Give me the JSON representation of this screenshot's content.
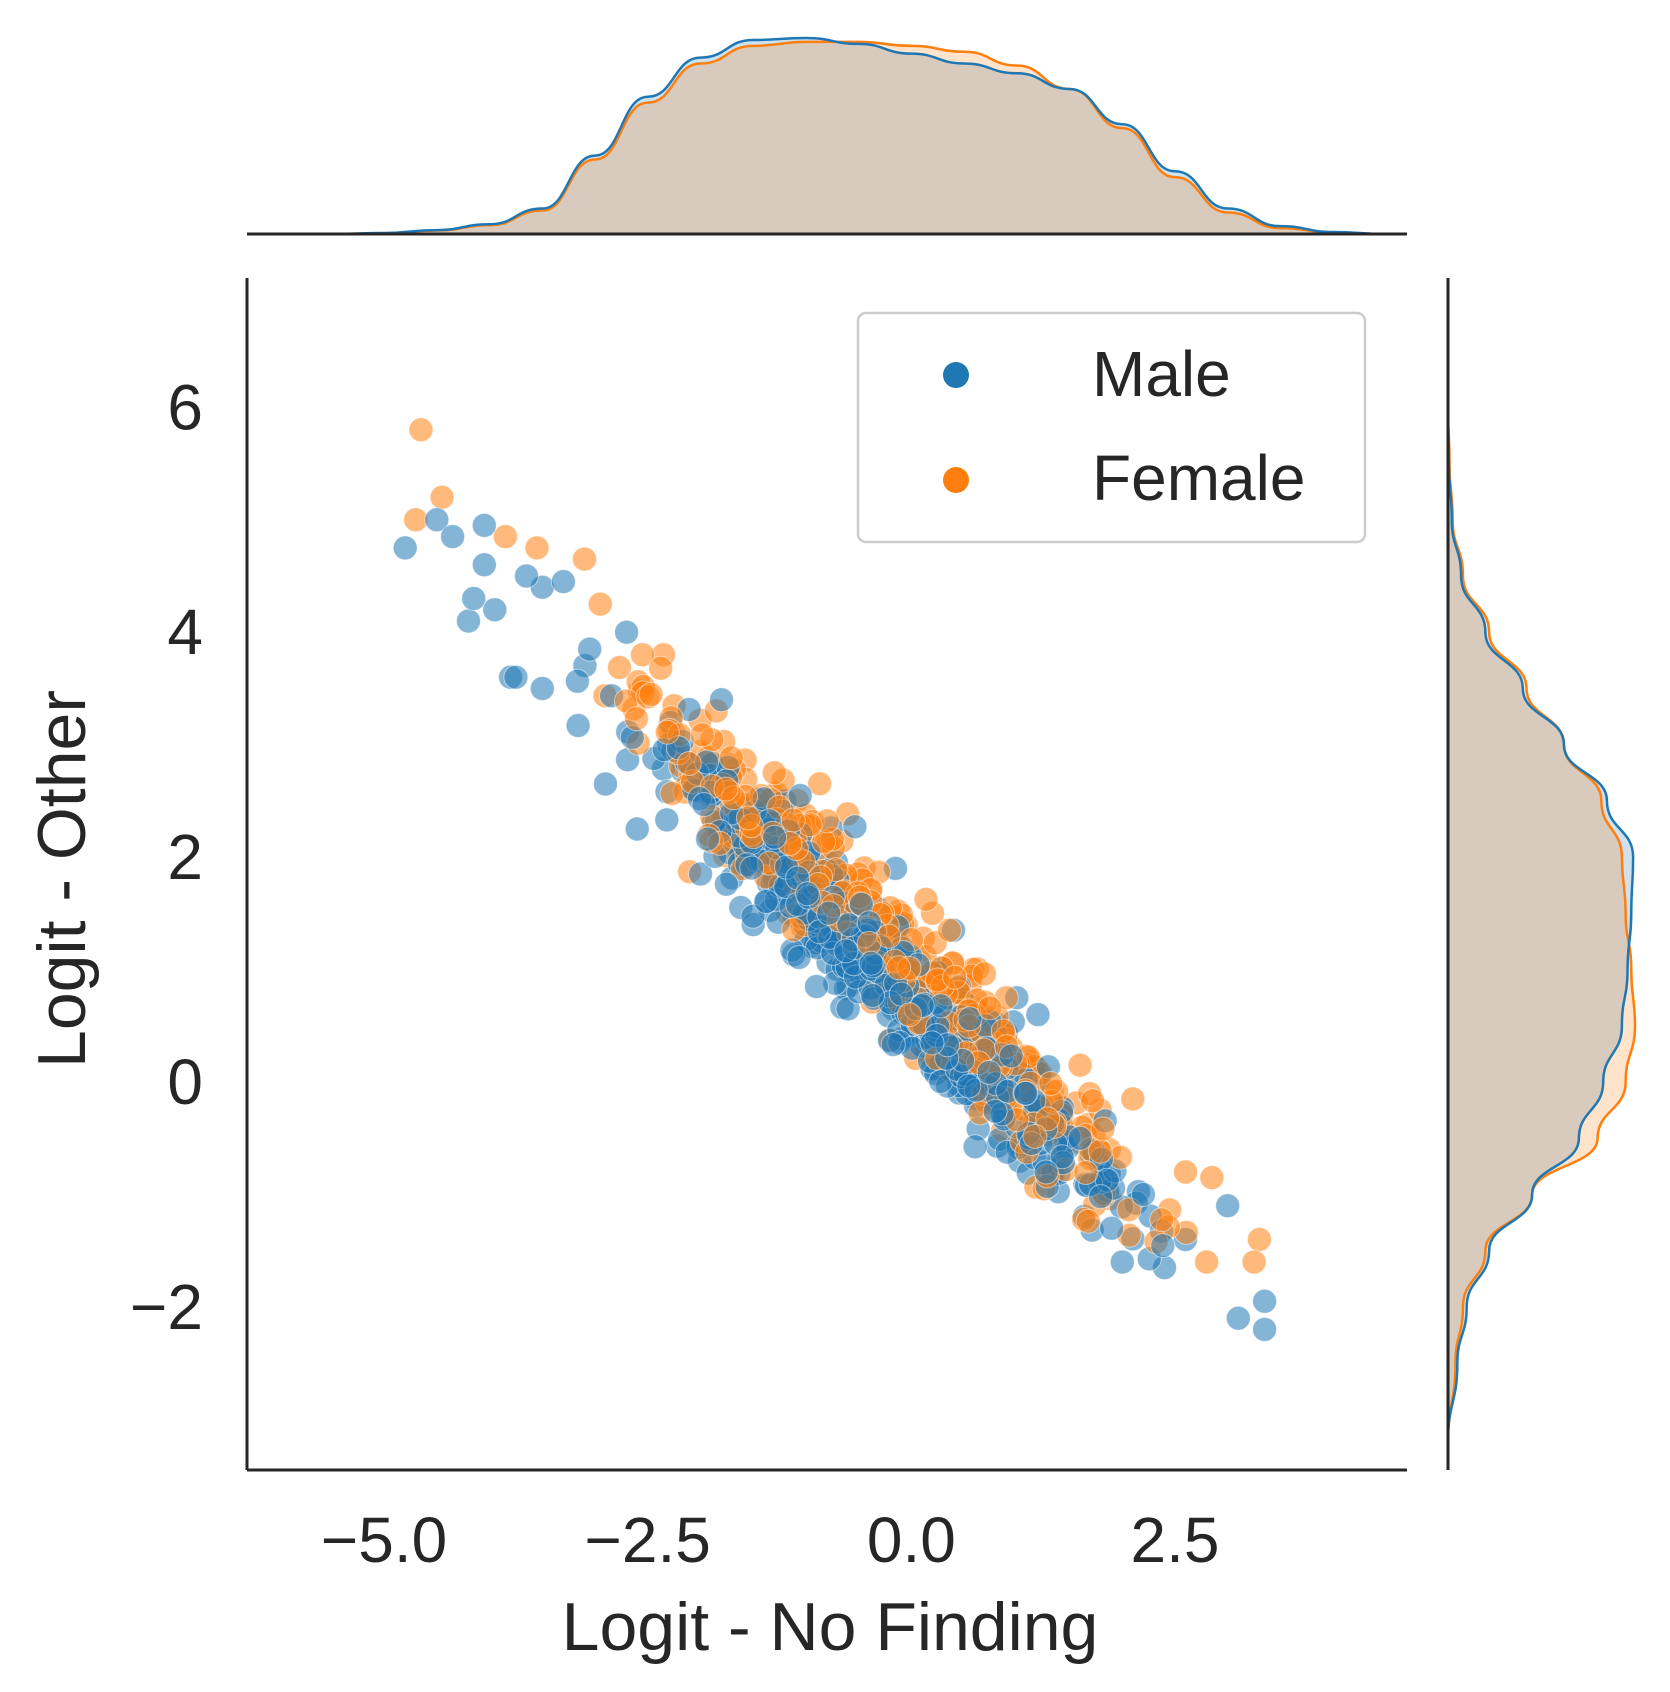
{
  "colors": {
    "male": "#1f77b4",
    "female": "#ff7f0e",
    "overlap": "#c4c4be",
    "axis": "#262626",
    "legend_border": "#cccccc"
  },
  "chart_data": {
    "type": "scatter",
    "subtype": "jointplot-with-kde-marginals",
    "xlabel": "Logit - No Finding",
    "ylabel": "Logit - Other",
    "xlim": [
      -6.3,
      4.7
    ],
    "ylim": [
      -3.45,
      7.15
    ],
    "xticks": [
      -5.0,
      -2.5,
      0.0,
      2.5
    ],
    "xtick_labels": [
      "−5.0",
      "−2.5",
      "0.0",
      "2.5"
    ],
    "yticks": [
      -2,
      0,
      2,
      4,
      6
    ],
    "ytick_labels": [
      "−2",
      "0",
      "2",
      "4",
      "6"
    ],
    "grid": false,
    "legend": {
      "placement": "top-right",
      "entries": [
        {
          "label": "Male",
          "color": "#1f77b4"
        },
        {
          "label": "Female",
          "color": "#ff7f0e"
        }
      ]
    },
    "series": [
      {
        "name": "Male",
        "color": "#1f77b4",
        "alpha": 0.55,
        "points": [
          [
            -4.8,
            4.75
          ],
          [
            -4.5,
            5.0
          ],
          [
            -4.35,
            4.85
          ],
          [
            -4.2,
            4.1
          ],
          [
            -4.15,
            4.3
          ],
          [
            -4.05,
            4.6
          ],
          [
            -4.05,
            4.95
          ],
          [
            -3.95,
            4.2
          ],
          [
            -3.8,
            3.6
          ],
          [
            -3.75,
            3.6
          ],
          [
            -3.65,
            4.5
          ],
          [
            -3.5,
            4.4
          ],
          [
            -3.5,
            3.5
          ],
          [
            -3.3,
            4.45
          ],
          [
            -3.05,
            3.85
          ],
          [
            -2.9,
            2.65
          ],
          [
            -2.7,
            4.0
          ],
          [
            -2.6,
            2.25
          ],
          [
            -1.8,
            3.4
          ],
          [
            -2.0,
            1.85
          ],
          [
            -1.5,
            1.4
          ],
          [
            -1.2,
            2.5
          ],
          [
            -0.9,
            0.85
          ],
          [
            -0.6,
            0.65
          ],
          [
            -0.15,
            1.9
          ],
          [
            0.4,
            1.35
          ],
          [
            1.0,
            0.75
          ],
          [
            1.2,
            0.6
          ],
          [
            1.9,
            -1.3
          ],
          [
            2.0,
            -1.6
          ],
          [
            2.4,
            -1.65
          ],
          [
            3.0,
            -1.1
          ],
          [
            3.1,
            -2.1
          ],
          [
            3.35,
            -1.95
          ],
          [
            3.35,
            -2.2
          ],
          [
            2.6,
            -1.4
          ],
          [
            2.2,
            -1.0
          ],
          [
            1.6,
            -0.5
          ],
          [
            0.6,
            0.1
          ],
          [
            -0.4,
            1.1
          ],
          [
            -1.6,
            2.0
          ],
          [
            -2.3,
            3.0
          ]
        ],
        "cluster": {
          "count": 560,
          "x_range": [
            -3.6,
            2.9
          ],
          "slope": -0.92,
          "intercept": 0.75,
          "y_spread": 0.27
        }
      },
      {
        "name": "Female",
        "color": "#ff7f0e",
        "alpha": 0.55,
        "points": [
          [
            -4.65,
            5.8
          ],
          [
            -4.45,
            5.2
          ],
          [
            -4.7,
            5.0
          ],
          [
            -3.85,
            4.85
          ],
          [
            -3.55,
            4.75
          ],
          [
            -3.1,
            4.65
          ],
          [
            -2.95,
            4.25
          ],
          [
            -2.55,
            3.8
          ],
          [
            -2.35,
            3.8
          ],
          [
            -1.85,
            3.3
          ],
          [
            -1.3,
            2.75
          ],
          [
            -0.8,
            2.15
          ],
          [
            -0.2,
            1.55
          ],
          [
            0.2,
            1.5
          ],
          [
            0.9,
            0.75
          ],
          [
            1.6,
            0.15
          ],
          [
            2.1,
            -0.15
          ],
          [
            2.6,
            -0.8
          ],
          [
            2.85,
            -0.85
          ],
          [
            3.3,
            -1.4
          ],
          [
            3.25,
            -1.6
          ],
          [
            2.8,
            -1.6
          ],
          [
            1.7,
            -0.6
          ],
          [
            0.3,
            0.55
          ],
          [
            -1.0,
            1.7
          ]
        ],
        "cluster": {
          "count": 520,
          "x_range": [
            -3.5,
            3.0
          ],
          "slope": -0.92,
          "intercept": 0.95,
          "y_spread": 0.27
        }
      }
    ],
    "marginal_x": {
      "x": [
        -5.5,
        -5.0,
        -4.5,
        -4.0,
        -3.5,
        -3.0,
        -2.5,
        -2.0,
        -1.5,
        -1.0,
        -0.5,
        0.0,
        0.5,
        1.0,
        1.5,
        2.0,
        2.5,
        3.0,
        3.5,
        4.0,
        4.5
      ],
      "male": [
        0.0,
        0.005,
        0.02,
        0.05,
        0.13,
        0.4,
        0.7,
        0.9,
        0.99,
        1.0,
        0.97,
        0.92,
        0.87,
        0.82,
        0.74,
        0.56,
        0.32,
        0.13,
        0.04,
        0.01,
        0.0
      ],
      "female": [
        0.0,
        0.004,
        0.018,
        0.045,
        0.12,
        0.38,
        0.67,
        0.87,
        0.96,
        0.98,
        0.98,
        0.96,
        0.93,
        0.86,
        0.74,
        0.54,
        0.29,
        0.11,
        0.03,
        0.008,
        0.0
      ]
    },
    "marginal_y": {
      "y": [
        -3.2,
        -2.5,
        -2.0,
        -1.5,
        -1.0,
        -0.5,
        0.0,
        0.5,
        1.0,
        1.5,
        2.0,
        2.5,
        3.0,
        3.5,
        4.0,
        4.5,
        5.0,
        5.5,
        6.0
      ],
      "male": [
        0.0,
        0.05,
        0.1,
        0.22,
        0.45,
        0.7,
        0.83,
        0.93,
        0.96,
        0.98,
        0.99,
        0.85,
        0.62,
        0.4,
        0.2,
        0.07,
        0.02,
        0.005,
        0.0
      ],
      "female": [
        0.0,
        0.04,
        0.08,
        0.2,
        0.45,
        0.8,
        0.95,
        1.0,
        0.98,
        0.95,
        0.93,
        0.82,
        0.62,
        0.42,
        0.22,
        0.08,
        0.025,
        0.008,
        0.0
      ]
    }
  }
}
